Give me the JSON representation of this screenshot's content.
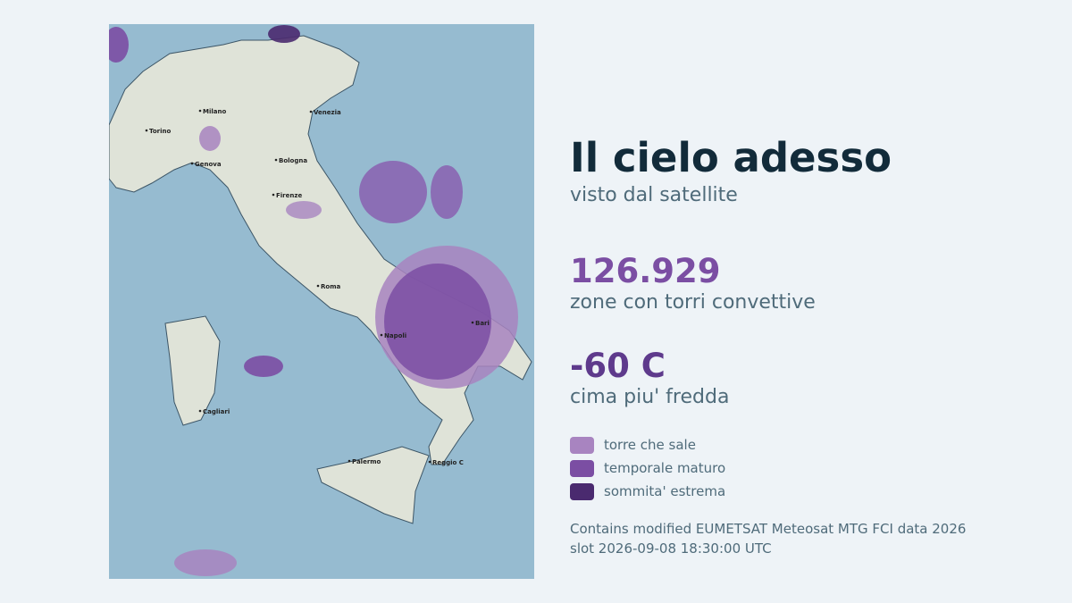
{
  "title": "Il cielo adesso",
  "subtitle": "visto dal satellite",
  "stats": [
    {
      "value": "126.929",
      "label": "zone con torri convettive"
    },
    {
      "value": "-60 C",
      "label": "cima piu' fredda"
    }
  ],
  "legend": [
    {
      "label": "torre che sale",
      "color": "#a884c0"
    },
    {
      "label": "temporale maturo",
      "color": "#7b4ea3"
    },
    {
      "label": "sommita' estrema",
      "color": "#4a2a6f"
    }
  ],
  "credit": "Contains modified EUMETSAT Meteosat MTG FCI data 2026",
  "slot": "slot 2026-09-08 18:30:00 UTC",
  "map": {
    "cities": [
      "Milano",
      "Venezia",
      "Torino",
      "Genova",
      "Bologna",
      "Firenze",
      "Roma",
      "Napoli",
      "Bari",
      "Cagliari",
      "Palermo",
      "Reggio C"
    ]
  }
}
